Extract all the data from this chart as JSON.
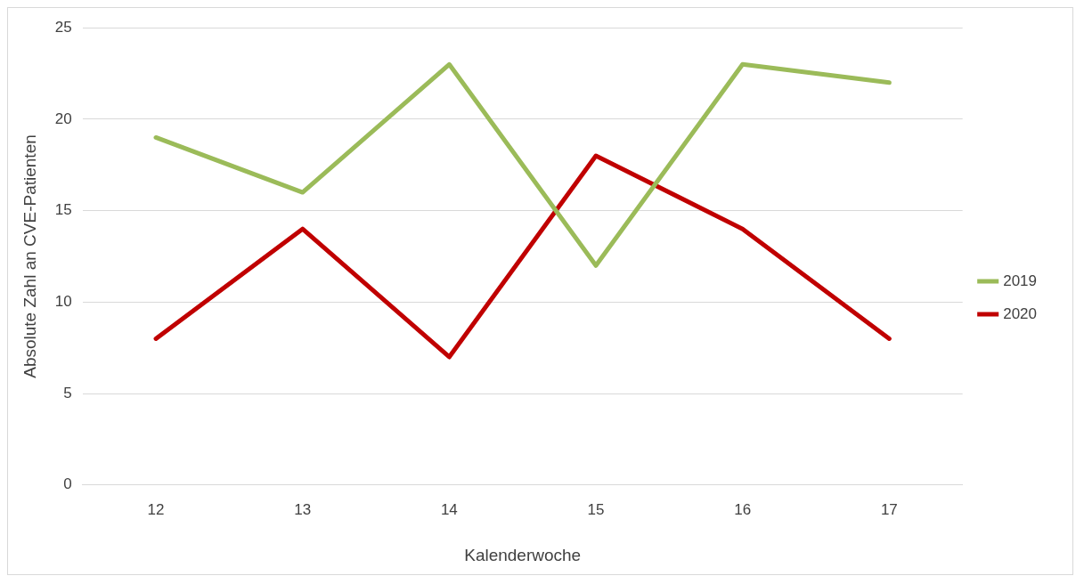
{
  "chart_data": {
    "type": "line",
    "xlabel": "Kalenderwoche",
    "ylabel": "Absolute Zahl an CVE-Patienten",
    "categories": [
      "12",
      "13",
      "14",
      "15",
      "16",
      "17"
    ],
    "series": [
      {
        "name": "2019",
        "color": "#9bbb59",
        "values": [
          19,
          16,
          23,
          12,
          23,
          22
        ]
      },
      {
        "name": "2020",
        "color": "#c00000",
        "values": [
          8,
          14,
          7,
          18,
          14,
          8
        ]
      }
    ],
    "ylim": [
      0,
      25
    ],
    "yticks": [
      0,
      5,
      10,
      15,
      20,
      25
    ],
    "grid": "y",
    "legend": "right",
    "marker": "none",
    "line_style": "solid"
  }
}
